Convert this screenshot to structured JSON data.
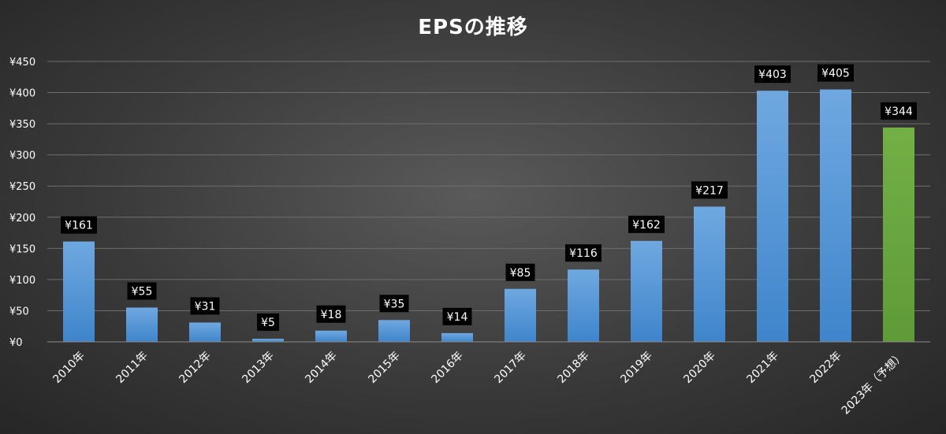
{
  "chart_data": {
    "type": "bar",
    "title": "EPSの推移",
    "xlabel": "",
    "ylabel": "",
    "categories": [
      "2010年",
      "2011年",
      "2012年",
      "2013年",
      "2014年",
      "2015年",
      "2016年",
      "2017年",
      "2018年",
      "2019年",
      "2020年",
      "2021年",
      "2022年",
      "2023年（予想）"
    ],
    "values": [
      161,
      55,
      31,
      5,
      18,
      35,
      14,
      85,
      116,
      162,
      217,
      403,
      405,
      344
    ],
    "data_labels": [
      "¥161",
      "¥55",
      "¥31",
      "¥5",
      "¥18",
      "¥35",
      "¥14",
      "¥85",
      "¥116",
      "¥162",
      "¥217",
      "¥403",
      "¥405",
      "¥344"
    ],
    "ylim": [
      0,
      450
    ],
    "y_ticks": [
      0,
      50,
      100,
      150,
      200,
      250,
      300,
      350,
      400,
      450
    ],
    "y_tick_labels": [
      "¥0",
      "¥50",
      "¥100",
      "¥150",
      "¥200",
      "¥250",
      "¥300",
      "¥350",
      "¥400",
      "¥450"
    ],
    "grid": true,
    "legend": "none",
    "colors": {
      "actual": "#5b9bd5",
      "forecast": "#70ad47",
      "label_bg": "#000000",
      "grid": "#6e6e6e"
    },
    "forecast_index": 13
  }
}
